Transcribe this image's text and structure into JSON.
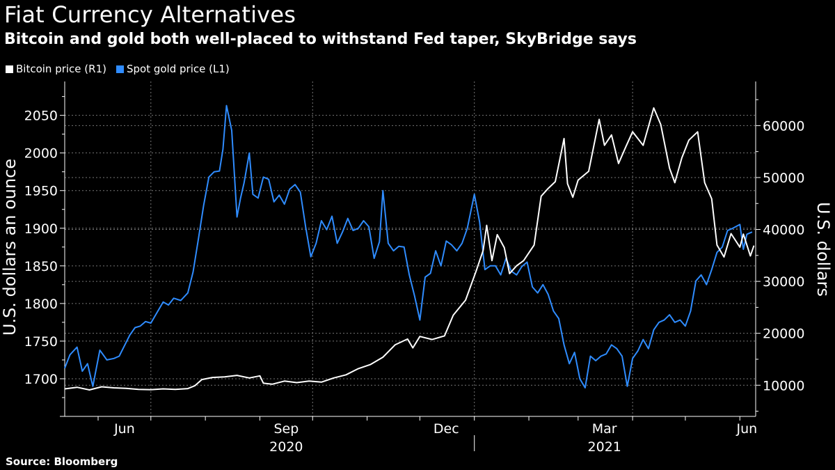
{
  "title": "Fiat Currency Alternatives",
  "subtitle": "Bitcoin and gold both well-placed to withstand Fed taper, SkyBridge says",
  "source": "Source: Bloomberg",
  "legend": [
    {
      "label": "Bitcoin price (R1)",
      "color": "#ffffff"
    },
    {
      "label": "Spot gold price (L1)",
      "color": "#2f8cff"
    }
  ],
  "colors": {
    "bitcoin": "#ffffff",
    "gold": "#2f8cff",
    "grid": "#777777",
    "background": "#000000"
  },
  "chart_data": {
    "type": "line",
    "left_axis": {
      "label": "U.S. dollars an ounce",
      "ticks": [
        1700,
        1750,
        1800,
        1850,
        1900,
        1950,
        2000,
        2050
      ],
      "range": [
        1650,
        2095
      ]
    },
    "right_axis": {
      "label": "U.S. dollars",
      "ticks": [
        10000,
        20000,
        30000,
        40000,
        50000,
        60000
      ],
      "range": [
        4000,
        68500
      ]
    },
    "x_axis": {
      "range": [
        "2020-05-13",
        "2021-06-10"
      ],
      "month_labels": [
        {
          "label": "Jun",
          "date": "2020-06-16"
        },
        {
          "label": "Sep",
          "date": "2020-09-16"
        },
        {
          "label": "Dec",
          "date": "2020-12-16"
        },
        {
          "label": "Mar",
          "date": "2021-03-16"
        },
        {
          "label": "Jun",
          "date": "2021-06-05"
        }
      ],
      "year_labels": [
        {
          "label": "2020",
          "date": "2020-09-16"
        },
        {
          "label": "2021",
          "date": "2021-03-16"
        }
      ],
      "gridline_dates": [
        "2020-07-01",
        "2020-10-01",
        "2021-01-01",
        "2021-04-01"
      ],
      "year_divider": "2021-01-01"
    },
    "grid": true,
    "legend_position": "top-left",
    "series": [
      {
        "name": "Spot gold price (L1)",
        "axis": "left",
        "color": "#2f8cff",
        "points": [
          [
            "2020-05-13",
            1714
          ],
          [
            "2020-05-16",
            1732
          ],
          [
            "2020-05-20",
            1742
          ],
          [
            "2020-05-23",
            1710
          ],
          [
            "2020-05-26",
            1720
          ],
          [
            "2020-05-29",
            1690
          ],
          [
            "2020-06-02",
            1738
          ],
          [
            "2020-06-06",
            1725
          ],
          [
            "2020-06-10",
            1727
          ],
          [
            "2020-06-13",
            1730
          ],
          [
            "2020-06-16",
            1744
          ],
          [
            "2020-06-19",
            1758
          ],
          [
            "2020-06-22",
            1768
          ],
          [
            "2020-06-25",
            1770
          ],
          [
            "2020-06-28",
            1776
          ],
          [
            "2020-07-01",
            1774
          ],
          [
            "2020-07-04",
            1786
          ],
          [
            "2020-07-08",
            1802
          ],
          [
            "2020-07-11",
            1798
          ],
          [
            "2020-07-14",
            1807
          ],
          [
            "2020-07-18",
            1804
          ],
          [
            "2020-07-22",
            1814
          ],
          [
            "2020-07-25",
            1842
          ],
          [
            "2020-07-28",
            1885
          ],
          [
            "2020-07-31",
            1930
          ],
          [
            "2020-08-03",
            1968
          ],
          [
            "2020-08-06",
            1975
          ],
          [
            "2020-08-09",
            1976
          ],
          [
            "2020-08-11",
            2005
          ],
          [
            "2020-08-13",
            2063
          ],
          [
            "2020-08-16",
            2030
          ],
          [
            "2020-08-19",
            1915
          ],
          [
            "2020-08-21",
            1940
          ],
          [
            "2020-08-23",
            1960
          ],
          [
            "2020-08-26",
            2000
          ],
          [
            "2020-08-28",
            1945
          ],
          [
            "2020-08-31",
            1940
          ],
          [
            "2020-09-03",
            1968
          ],
          [
            "2020-09-06",
            1965
          ],
          [
            "2020-09-09",
            1935
          ],
          [
            "2020-09-12",
            1944
          ],
          [
            "2020-09-15",
            1932
          ],
          [
            "2020-09-18",
            1952
          ],
          [
            "2020-09-21",
            1958
          ],
          [
            "2020-09-24",
            1948
          ],
          [
            "2020-09-27",
            1902
          ],
          [
            "2020-09-30",
            1862
          ],
          [
            "2020-10-03",
            1880
          ],
          [
            "2020-10-06",
            1910
          ],
          [
            "2020-10-09",
            1898
          ],
          [
            "2020-10-12",
            1916
          ],
          [
            "2020-10-15",
            1880
          ],
          [
            "2020-10-18",
            1895
          ],
          [
            "2020-10-21",
            1913
          ],
          [
            "2020-10-24",
            1897
          ],
          [
            "2020-10-27",
            1900
          ],
          [
            "2020-10-30",
            1910
          ],
          [
            "2020-11-02",
            1902
          ],
          [
            "2020-11-05",
            1860
          ],
          [
            "2020-11-08",
            1882
          ],
          [
            "2020-11-10",
            1950
          ],
          [
            "2020-11-13",
            1880
          ],
          [
            "2020-11-16",
            1870
          ],
          [
            "2020-11-19",
            1876
          ],
          [
            "2020-11-22",
            1875
          ],
          [
            "2020-11-25",
            1838
          ],
          [
            "2020-11-28",
            1810
          ],
          [
            "2020-12-01",
            1778
          ],
          [
            "2020-12-04",
            1835
          ],
          [
            "2020-12-07",
            1840
          ],
          [
            "2020-12-10",
            1870
          ],
          [
            "2020-12-13",
            1850
          ],
          [
            "2020-12-16",
            1883
          ],
          [
            "2020-12-19",
            1878
          ],
          [
            "2020-12-22",
            1870
          ],
          [
            "2020-12-25",
            1880
          ],
          [
            "2020-12-28",
            1900
          ],
          [
            "2021-01-01",
            1945
          ],
          [
            "2021-01-04",
            1908
          ],
          [
            "2021-01-07",
            1845
          ],
          [
            "2021-01-10",
            1850
          ],
          [
            "2021-01-13",
            1850
          ],
          [
            "2021-01-16",
            1838
          ],
          [
            "2021-01-19",
            1860
          ],
          [
            "2021-01-22",
            1843
          ],
          [
            "2021-01-25",
            1838
          ],
          [
            "2021-01-28",
            1849
          ],
          [
            "2021-01-31",
            1855
          ],
          [
            "2021-02-03",
            1822
          ],
          [
            "2021-02-06",
            1814
          ],
          [
            "2021-02-09",
            1825
          ],
          [
            "2021-02-12",
            1812
          ],
          [
            "2021-02-15",
            1790
          ],
          [
            "2021-02-18",
            1780
          ],
          [
            "2021-02-21",
            1745
          ],
          [
            "2021-02-24",
            1720
          ],
          [
            "2021-02-27",
            1735
          ],
          [
            "2021-03-02",
            1700
          ],
          [
            "2021-03-05",
            1688
          ],
          [
            "2021-03-08",
            1730
          ],
          [
            "2021-03-11",
            1724
          ],
          [
            "2021-03-14",
            1730
          ],
          [
            "2021-03-17",
            1733
          ],
          [
            "2021-03-20",
            1745
          ],
          [
            "2021-03-23",
            1740
          ],
          [
            "2021-03-26",
            1730
          ],
          [
            "2021-03-29",
            1690
          ],
          [
            "2021-04-01",
            1727
          ],
          [
            "2021-04-04",
            1737
          ],
          [
            "2021-04-07",
            1752
          ],
          [
            "2021-04-10",
            1740
          ],
          [
            "2021-04-13",
            1765
          ],
          [
            "2021-04-16",
            1775
          ],
          [
            "2021-04-19",
            1778
          ],
          [
            "2021-04-22",
            1785
          ],
          [
            "2021-04-25",
            1775
          ],
          [
            "2021-04-28",
            1778
          ],
          [
            "2021-05-01",
            1770
          ],
          [
            "2021-05-04",
            1790
          ],
          [
            "2021-05-07",
            1830
          ],
          [
            "2021-05-10",
            1838
          ],
          [
            "2021-05-13",
            1825
          ],
          [
            "2021-05-16",
            1845
          ],
          [
            "2021-05-19",
            1868
          ],
          [
            "2021-05-22",
            1875
          ],
          [
            "2021-05-25",
            1897
          ],
          [
            "2021-05-28",
            1900
          ],
          [
            "2021-06-01",
            1905
          ],
          [
            "2021-06-03",
            1872
          ],
          [
            "2021-06-05",
            1892
          ],
          [
            "2021-06-08",
            1895
          ]
        ]
      },
      {
        "name": "Bitcoin price (R1)",
        "axis": "right",
        "color": "#ffffff",
        "points": [
          [
            "2020-05-13",
            9300
          ],
          [
            "2020-05-20",
            9600
          ],
          [
            "2020-05-27",
            9100
          ],
          [
            "2020-06-03",
            9700
          ],
          [
            "2020-06-10",
            9500
          ],
          [
            "2020-06-17",
            9400
          ],
          [
            "2020-06-24",
            9200
          ],
          [
            "2020-07-01",
            9150
          ],
          [
            "2020-07-08",
            9300
          ],
          [
            "2020-07-15",
            9200
          ],
          [
            "2020-07-22",
            9350
          ],
          [
            "2020-07-26",
            9900
          ],
          [
            "2020-07-30",
            11100
          ],
          [
            "2020-08-05",
            11500
          ],
          [
            "2020-08-12",
            11600
          ],
          [
            "2020-08-19",
            11900
          ],
          [
            "2020-08-26",
            11400
          ],
          [
            "2020-09-01",
            11800
          ],
          [
            "2020-09-03",
            10400
          ],
          [
            "2020-09-08",
            10200
          ],
          [
            "2020-09-15",
            10800
          ],
          [
            "2020-09-22",
            10500
          ],
          [
            "2020-09-29",
            10800
          ],
          [
            "2020-10-06",
            10600
          ],
          [
            "2020-10-13",
            11400
          ],
          [
            "2020-10-20",
            12000
          ],
          [
            "2020-10-27",
            13200
          ],
          [
            "2020-11-03",
            14000
          ],
          [
            "2020-11-10",
            15400
          ],
          [
            "2020-11-17",
            17800
          ],
          [
            "2020-11-24",
            18900
          ],
          [
            "2020-11-27",
            17200
          ],
          [
            "2020-12-01",
            19400
          ],
          [
            "2020-12-08",
            18800
          ],
          [
            "2020-12-15",
            19500
          ],
          [
            "2020-12-20",
            23500
          ],
          [
            "2020-12-27",
            26400
          ],
          [
            "2021-01-02",
            32000
          ],
          [
            "2021-01-06",
            36000
          ],
          [
            "2021-01-08",
            40800
          ],
          [
            "2021-01-11",
            34000
          ],
          [
            "2021-01-14",
            39000
          ],
          [
            "2021-01-18",
            36500
          ],
          [
            "2021-01-21",
            31500
          ],
          [
            "2021-01-25",
            33000
          ],
          [
            "2021-01-29",
            34000
          ],
          [
            "2021-02-04",
            37000
          ],
          [
            "2021-02-08",
            46400
          ],
          [
            "2021-02-12",
            47900
          ],
          [
            "2021-02-16",
            49200
          ],
          [
            "2021-02-21",
            57500
          ],
          [
            "2021-02-23",
            48800
          ],
          [
            "2021-02-26",
            46200
          ],
          [
            "2021-03-01",
            49500
          ],
          [
            "2021-03-07",
            51200
          ],
          [
            "2021-03-13",
            61200
          ],
          [
            "2021-03-16",
            56200
          ],
          [
            "2021-03-20",
            58200
          ],
          [
            "2021-03-24",
            52700
          ],
          [
            "2021-03-28",
            55800
          ],
          [
            "2021-04-01",
            58800
          ],
          [
            "2021-04-07",
            56200
          ],
          [
            "2021-04-13",
            63400
          ],
          [
            "2021-04-17",
            60200
          ],
          [
            "2021-04-22",
            51800
          ],
          [
            "2021-04-25",
            49000
          ],
          [
            "2021-04-29",
            53800
          ],
          [
            "2021-05-03",
            57200
          ],
          [
            "2021-05-08",
            58800
          ],
          [
            "2021-05-12",
            49000
          ],
          [
            "2021-05-16",
            45900
          ],
          [
            "2021-05-19",
            37000
          ],
          [
            "2021-05-23",
            34700
          ],
          [
            "2021-05-27",
            39200
          ],
          [
            "2021-06-01",
            36600
          ],
          [
            "2021-06-03",
            39100
          ],
          [
            "2021-06-07",
            34900
          ],
          [
            "2021-06-09",
            36900
          ]
        ]
      }
    ]
  }
}
